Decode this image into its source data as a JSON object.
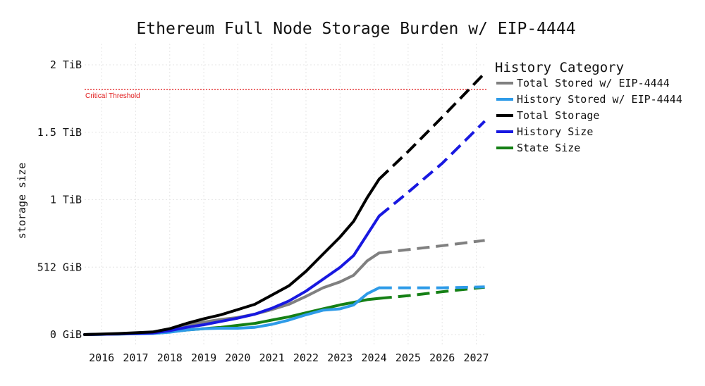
{
  "chart_data": {
    "type": "line",
    "title": "Ethereum Full Node Storage Burden w/ EIP-4444",
    "xlabel": "",
    "ylabel": "storage size",
    "xlim": [
      2015.5,
      2027.3
    ],
    "ylim": [
      0,
      2048
    ],
    "x_ticks": [
      2016,
      2017,
      2018,
      2019,
      2020,
      2021,
      2022,
      2023,
      2024,
      2025,
      2026,
      2027
    ],
    "x_tick_labels": [
      "2016",
      "2017",
      "2018",
      "2019",
      "2020",
      "2021",
      "2022",
      "2023",
      "2024",
      "2025",
      "2026",
      "2027"
    ],
    "y_ticks": [
      0,
      512,
      1024,
      1536,
      2048
    ],
    "y_tick_labels": [
      "0 GiB",
      "512 GiB",
      "1 TiB",
      "1.5 TiB",
      "2 TiB"
    ],
    "grid": true,
    "legend": {
      "title": "History Category",
      "placement": "outside-right"
    },
    "annotations": [
      {
        "type": "hline",
        "y": 1860,
        "label": "Critical Threshold",
        "color": "#e0191a",
        "style": "dotted"
      }
    ],
    "projection_start": 2024.15,
    "series": [
      {
        "name": "Total Stored w/ EIP-4444",
        "color": "#808080",
        "points": [
          [
            2015.5,
            0
          ],
          [
            2016.5,
            5
          ],
          [
            2017.5,
            15
          ],
          [
            2018,
            35
          ],
          [
            2018.5,
            75
          ],
          [
            2019,
            95
          ],
          [
            2019.5,
            115
          ],
          [
            2020,
            130
          ],
          [
            2020.5,
            155
          ],
          [
            2021,
            190
          ],
          [
            2021.5,
            230
          ],
          [
            2022,
            290
          ],
          [
            2022.5,
            355
          ],
          [
            2023,
            400
          ],
          [
            2023.4,
            450
          ],
          [
            2023.8,
            560
          ],
          [
            2024.15,
            620
          ],
          [
            2025,
            645
          ],
          [
            2026,
            675
          ],
          [
            2027.25,
            715
          ]
        ]
      },
      {
        "name": "History Stored w/ EIP-4444",
        "color": "#2e9be8",
        "points": [
          [
            2015.5,
            0
          ],
          [
            2016.5,
            4
          ],
          [
            2017.5,
            8
          ],
          [
            2018,
            18
          ],
          [
            2018.5,
            35
          ],
          [
            2019,
            45
          ],
          [
            2019.5,
            48
          ],
          [
            2020,
            48
          ],
          [
            2020.5,
            55
          ],
          [
            2021,
            78
          ],
          [
            2021.5,
            110
          ],
          [
            2022,
            150
          ],
          [
            2022.5,
            185
          ],
          [
            2023,
            195
          ],
          [
            2023.4,
            225
          ],
          [
            2023.8,
            310
          ],
          [
            2024.15,
            355
          ],
          [
            2025,
            355
          ],
          [
            2026,
            355
          ],
          [
            2027.25,
            362
          ]
        ]
      },
      {
        "name": "Total Storage",
        "color": "#000000",
        "points": [
          [
            2015.5,
            0
          ],
          [
            2016.5,
            8
          ],
          [
            2017.5,
            20
          ],
          [
            2018,
            45
          ],
          [
            2018.5,
            85
          ],
          [
            2019,
            120
          ],
          [
            2019.5,
            150
          ],
          [
            2020,
            190
          ],
          [
            2020.5,
            230
          ],
          [
            2021,
            300
          ],
          [
            2021.5,
            370
          ],
          [
            2022,
            480
          ],
          [
            2022.5,
            610
          ],
          [
            2023,
            740
          ],
          [
            2023.4,
            860
          ],
          [
            2023.8,
            1040
          ],
          [
            2024.15,
            1180
          ],
          [
            2025,
            1390
          ],
          [
            2026,
            1650
          ],
          [
            2027.25,
            1985
          ]
        ]
      },
      {
        "name": "History Size",
        "color": "#1818e0",
        "points": [
          [
            2015.5,
            0
          ],
          [
            2016.5,
            5
          ],
          [
            2017.5,
            12
          ],
          [
            2018,
            30
          ],
          [
            2018.5,
            55
          ],
          [
            2019,
            75
          ],
          [
            2019.5,
            100
          ],
          [
            2020,
            125
          ],
          [
            2020.5,
            155
          ],
          [
            2021,
            200
          ],
          [
            2021.5,
            255
          ],
          [
            2022,
            330
          ],
          [
            2022.5,
            420
          ],
          [
            2023,
            510
          ],
          [
            2023.4,
            600
          ],
          [
            2023.8,
            760
          ],
          [
            2024.15,
            900
          ],
          [
            2025,
            1080
          ],
          [
            2026,
            1300
          ],
          [
            2027.25,
            1620
          ]
        ]
      },
      {
        "name": "State Size",
        "color": "#158015",
        "points": [
          [
            2015.5,
            0
          ],
          [
            2016.5,
            4
          ],
          [
            2017.5,
            10
          ],
          [
            2018,
            20
          ],
          [
            2018.5,
            35
          ],
          [
            2019,
            45
          ],
          [
            2019.5,
            55
          ],
          [
            2020,
            70
          ],
          [
            2020.5,
            85
          ],
          [
            2021,
            110
          ],
          [
            2021.5,
            135
          ],
          [
            2022,
            165
          ],
          [
            2022.5,
            195
          ],
          [
            2023,
            225
          ],
          [
            2023.4,
            245
          ],
          [
            2023.8,
            265
          ],
          [
            2024.15,
            275
          ],
          [
            2025,
            295
          ],
          [
            2026,
            325
          ],
          [
            2027.25,
            360
          ]
        ]
      }
    ]
  }
}
